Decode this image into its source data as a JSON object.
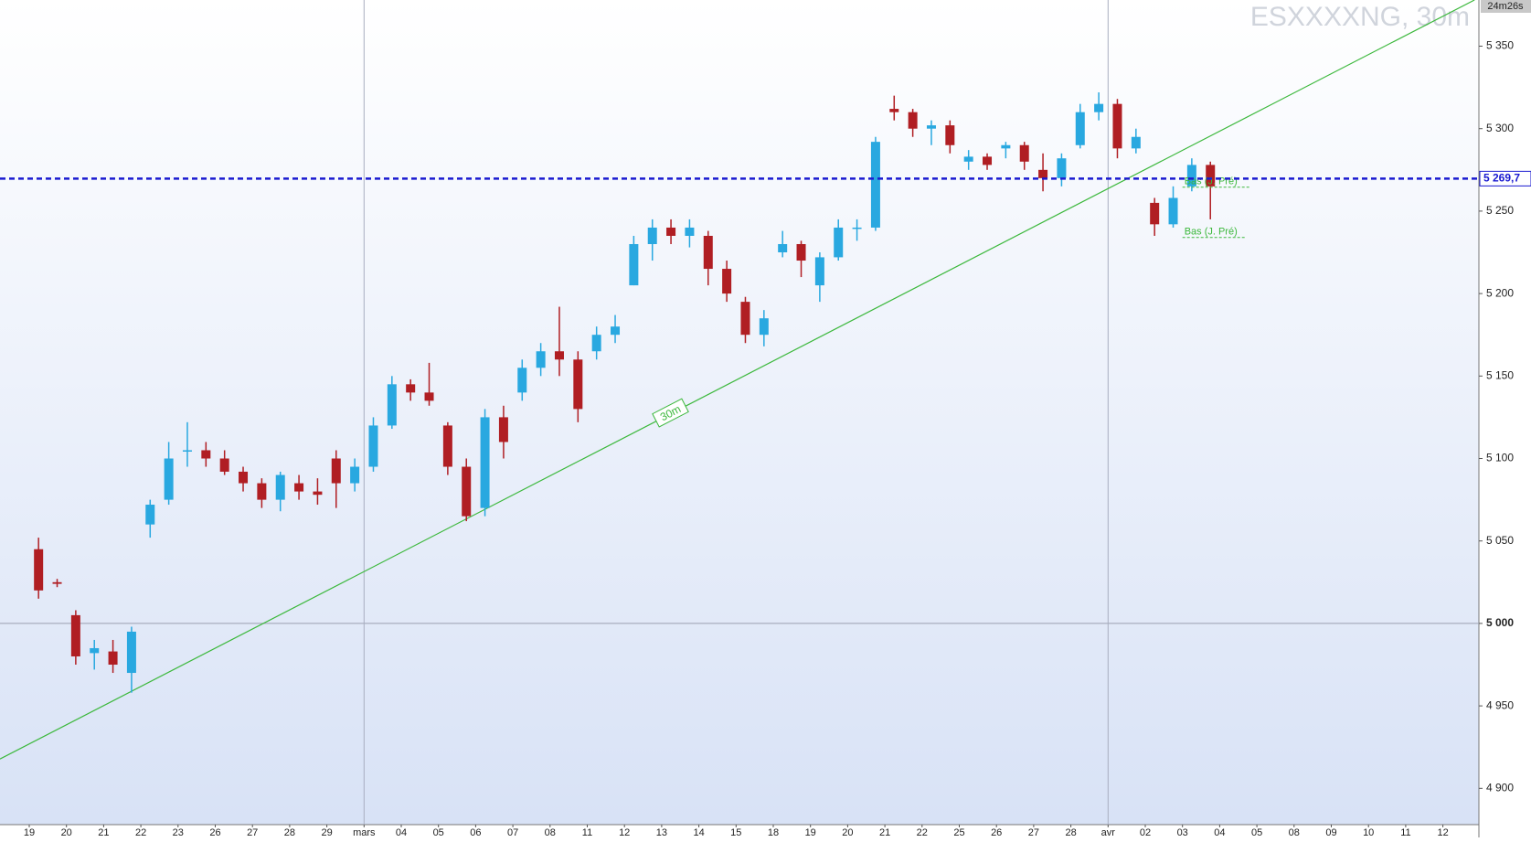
{
  "chart_data": {
    "type": "candlestick",
    "watermark": "ESXXXXNG, 30m",
    "timer": "24m26s",
    "categories": [
      "19",
      "20",
      "21",
      "22",
      "23",
      "26",
      "27",
      "28",
      "29",
      "mars",
      "04",
      "05",
      "06",
      "07",
      "08",
      "11",
      "12",
      "13",
      "14",
      "15",
      "18",
      "19",
      "20",
      "21",
      "22",
      "25",
      "26",
      "27",
      "28",
      "avr",
      "02",
      "03",
      "04",
      "05",
      "08",
      "09",
      "10",
      "11",
      "12"
    ],
    "ohlc": [
      [
        [
          5045,
          5052,
          5015,
          5020
        ],
        [
          5025,
          5027,
          5022,
          5024
        ]
      ],
      [
        [
          5005,
          5008,
          4975,
          4980
        ],
        [
          4982,
          4990,
          4972,
          4985
        ]
      ],
      [
        [
          4983,
          4990,
          4970,
          4975
        ],
        [
          4970,
          4998,
          4958,
          4995
        ]
      ],
      [
        [
          5060,
          5075,
          5052,
          5072
        ],
        [
          5075,
          5110,
          5072,
          5100
        ]
      ],
      [
        [
          5105,
          5122,
          5095,
          5105
        ],
        [
          5105,
          5110,
          5095,
          5100
        ]
      ],
      [
        [
          5100,
          5105,
          5090,
          5092
        ],
        [
          5092,
          5095,
          5080,
          5085
        ]
      ],
      [
        [
          5085,
          5088,
          5070,
          5075
        ],
        [
          5075,
          5092,
          5068,
          5090
        ]
      ],
      [
        [
          5085,
          5090,
          5075,
          5080
        ],
        [
          5080,
          5088,
          5072,
          5078
        ]
      ],
      [
        [
          5100,
          5105,
          5070,
          5085
        ],
        [
          5085,
          5100,
          5080,
          5095
        ]
      ],
      [
        [
          5095,
          5125,
          5092,
          5120
        ],
        [
          5120,
          5150,
          5118,
          5145
        ]
      ],
      [
        [
          5145,
          5148,
          5135,
          5140
        ],
        [
          5140,
          5158,
          5132,
          5135
        ]
      ],
      [
        [
          5120,
          5122,
          5090,
          5095
        ],
        [
          5095,
          5100,
          5062,
          5065
        ]
      ],
      [
        [
          5070,
          5130,
          5065,
          5125
        ],
        [
          5125,
          5132,
          5100,
          5110
        ]
      ],
      [
        [
          5140,
          5160,
          5135,
          5155
        ],
        [
          5155,
          5170,
          5150,
          5165
        ]
      ],
      [
        [
          5165,
          5192,
          5150,
          5160
        ],
        [
          5160,
          5165,
          5122,
          5130
        ]
      ],
      [
        [
          5165,
          5180,
          5160,
          5175
        ],
        [
          5175,
          5187,
          5170,
          5180
        ]
      ],
      [
        [
          5205,
          5235,
          5205,
          5230
        ],
        [
          5230,
          5245,
          5220,
          5240
        ]
      ],
      [
        [
          5240,
          5245,
          5230,
          5235
        ],
        [
          5235,
          5245,
          5228,
          5240
        ]
      ],
      [
        [
          5235,
          5238,
          5205,
          5215
        ],
        [
          5215,
          5220,
          5195,
          5200
        ]
      ],
      [
        [
          5195,
          5198,
          5170,
          5175
        ],
        [
          5175,
          5190,
          5168,
          5185
        ]
      ],
      [
        [
          5225,
          5238,
          5222,
          5230
        ],
        [
          5230,
          5232,
          5210,
          5220
        ]
      ],
      [
        [
          5205,
          5225,
          5195,
          5222
        ],
        [
          5222,
          5245,
          5220,
          5240
        ]
      ],
      [
        [
          5240,
          5245,
          5232,
          5240
        ],
        [
          5240,
          5295,
          5238,
          5292
        ]
      ],
      [
        [
          5312,
          5320,
          5305,
          5310
        ],
        [
          5310,
          5312,
          5295,
          5300
        ]
      ],
      [
        [
          5300,
          5305,
          5290,
          5302
        ],
        [
          5302,
          5305,
          5285,
          5290
        ]
      ],
      [
        [
          5280,
          5287,
          5275,
          5283
        ],
        [
          5283,
          5285,
          5275,
          5278
        ]
      ],
      [
        [
          5288,
          5292,
          5282,
          5290
        ],
        [
          5290,
          5292,
          5275,
          5280
        ]
      ],
      [
        [
          5275,
          5285,
          5262,
          5270
        ],
        [
          5270,
          5285,
          5265,
          5282
        ]
      ],
      [
        [
          5290,
          5315,
          5288,
          5310
        ],
        [
          5310,
          5322,
          5305,
          5315
        ]
      ],
      [
        [
          5315,
          5318,
          5282,
          5288
        ],
        [
          5288,
          5300,
          5285,
          5295
        ]
      ],
      [
        [
          5255,
          5258,
          5235,
          5242
        ],
        [
          5242,
          5265,
          5240,
          5258
        ]
      ],
      [
        [
          5265,
          5282,
          5262,
          5278
        ],
        [
          5278,
          5280,
          5245,
          5265
        ]
      ],
      null,
      null,
      null,
      null,
      null,
      null,
      null
    ],
    "up_color": "#29a8e0",
    "down_color": "#b01e23",
    "ylim": [
      4878,
      5378
    ],
    "yticks": [
      {
        "value": 4900,
        "label": "4 900"
      },
      {
        "value": 4950,
        "label": "4 950"
      },
      {
        "value": 5000,
        "label": "5 000"
      },
      {
        "value": 5050,
        "label": "5 050"
      },
      {
        "value": 5100,
        "label": "5 100"
      },
      {
        "value": 5150,
        "label": "5 150"
      },
      {
        "value": 5200,
        "label": "5 200"
      },
      {
        "value": 5250,
        "label": "5 250"
      },
      {
        "value": 5300,
        "label": "5 300"
      },
      {
        "value": 5350,
        "label": "5 350"
      }
    ],
    "ref_line": 5000,
    "last": {
      "value": 5269.7,
      "label": "5 269,7",
      "color": "#1a1ad0"
    },
    "trendline": {
      "x": [
        -0.787,
        38.85
      ],
      "y": [
        4917.8,
        5378
      ],
      "label": "30m",
      "color": "#3cb83c"
    },
    "levels": [
      {
        "label": "Bas (J. Pré)",
        "value": 5264.5,
        "x": [
          31,
          32.8
        ]
      },
      {
        "label": "Bas (J. Pré)",
        "value": 5234,
        "x": [
          31,
          32.7
        ]
      }
    ]
  }
}
